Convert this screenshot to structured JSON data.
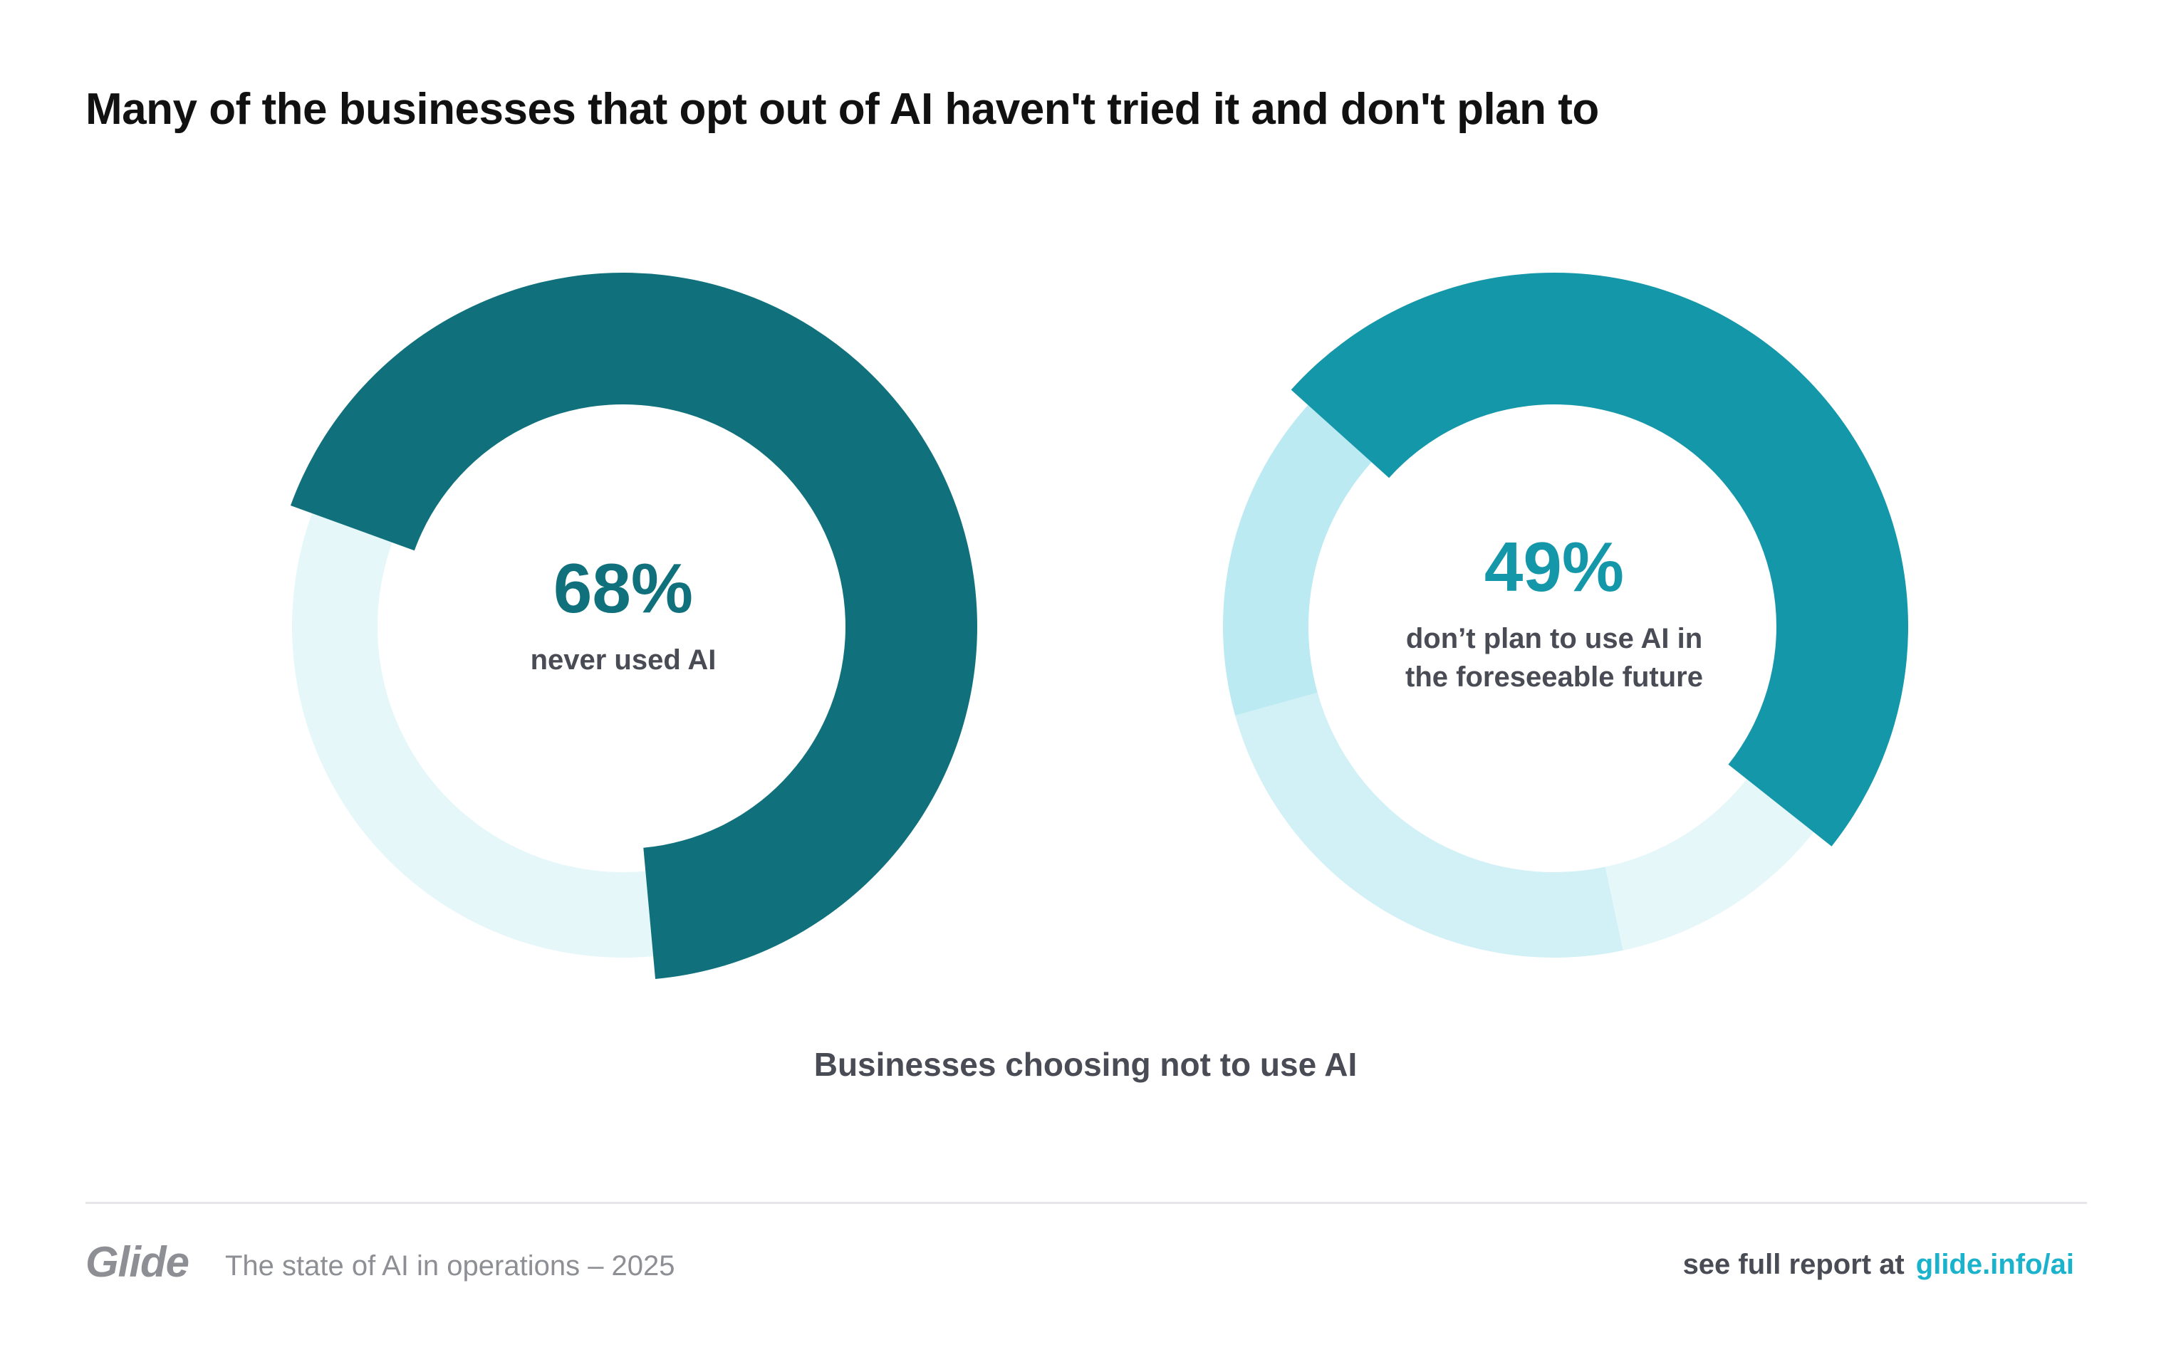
{
  "title": "Many of the businesses that opt out of AI haven't tried it and don't plan to",
  "subtitle": "Businesses choosing not to use AI",
  "footer": {
    "brand": "Glide",
    "report": "The state of AI in operations – 2025",
    "cta": "see full report at",
    "link": "glide.info/ai"
  },
  "colors": {
    "text": "#111111",
    "muted": "#8e8f94",
    "link": "#1bb3cc"
  },
  "chart_data": [
    {
      "type": "pie",
      "style": "donut",
      "center_value": "68%",
      "center_label": [
        "never used AI"
      ],
      "value_color": "#10717c",
      "start_angle_deg": 200,
      "slices": [
        {
          "value": 68,
          "color": "#10717c",
          "highlight": true
        },
        {
          "value": 32,
          "color": "#e6f7fa"
        }
      ]
    },
    {
      "type": "pie",
      "style": "donut",
      "center_value": "49%",
      "center_label": [
        "don’t plan to use AI in",
        "the foreseeable future"
      ],
      "value_color": "#1597aa",
      "start_angle_deg": 222,
      "slices": [
        {
          "value": 49,
          "color": "#1597aa",
          "highlight": true
        },
        {
          "value": 11,
          "color": "#e6f7fa"
        },
        {
          "value": 24,
          "color": "#d2f1f6"
        },
        {
          "value": 16,
          "color": "#bbeaf2"
        }
      ]
    }
  ]
}
